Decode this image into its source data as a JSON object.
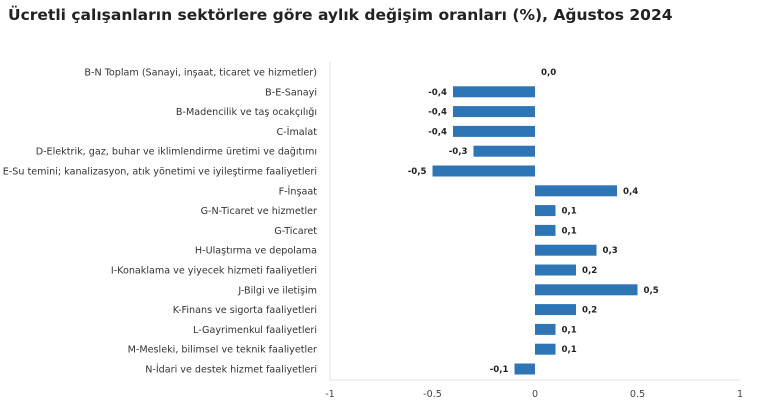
{
  "chart_data": {
    "type": "bar",
    "orientation": "horizontal",
    "title": "Ücretli çalışanların sektörlere göre aylık değişim oranları (%), Ağustos 2024",
    "categories": [
      "B-N Toplam (Sanayi, inşaat, ticaret ve hizmetler)",
      "B-E-Sanayi",
      "B-Madencilik ve taş ocakçılığı",
      "C-İmalat",
      "D-Elektrik, gaz, buhar ve iklimlendirme üretimi ve dağıtımı",
      "E-Su temini; kanalizasyon, atık yönetimi ve iyileştirme faaliyetleri",
      "F-İnşaat",
      "G-N-Ticaret ve hizmetler",
      "G-Ticaret",
      "H-Ulaştırma ve depolama",
      "I-Konaklama ve yiyecek hizmeti faaliyetleri",
      "J-Bilgi ve iletişim",
      "K-Finans ve sigorta faaliyetleri",
      "L-Gayrimenkul faaliyetleri",
      "M-Mesleki, bilimsel ve teknik faaliyetler",
      "N-İdari ve destek hizmet faaliyetleri"
    ],
    "values": [
      0.0,
      -0.4,
      -0.4,
      -0.4,
      -0.3,
      -0.5,
      0.4,
      0.1,
      0.1,
      0.3,
      0.2,
      0.5,
      0.2,
      0.1,
      0.1,
      -0.1
    ],
    "value_labels": [
      "0,0",
      "-0,4",
      "-0,4",
      "-0,4",
      "-0,3",
      "-0,5",
      "0,4",
      "0,1",
      "0,1",
      "0,3",
      "0,2",
      "0,5",
      "0,2",
      "0,1",
      "0,1",
      "-0,1"
    ],
    "xlim": [
      -1,
      1
    ],
    "xticks": [
      "-1",
      "-0.5",
      "0",
      "0.5",
      "1"
    ],
    "xlabel": "",
    "ylabel": "",
    "grid": false,
    "bar_color": "#2e75b6"
  }
}
